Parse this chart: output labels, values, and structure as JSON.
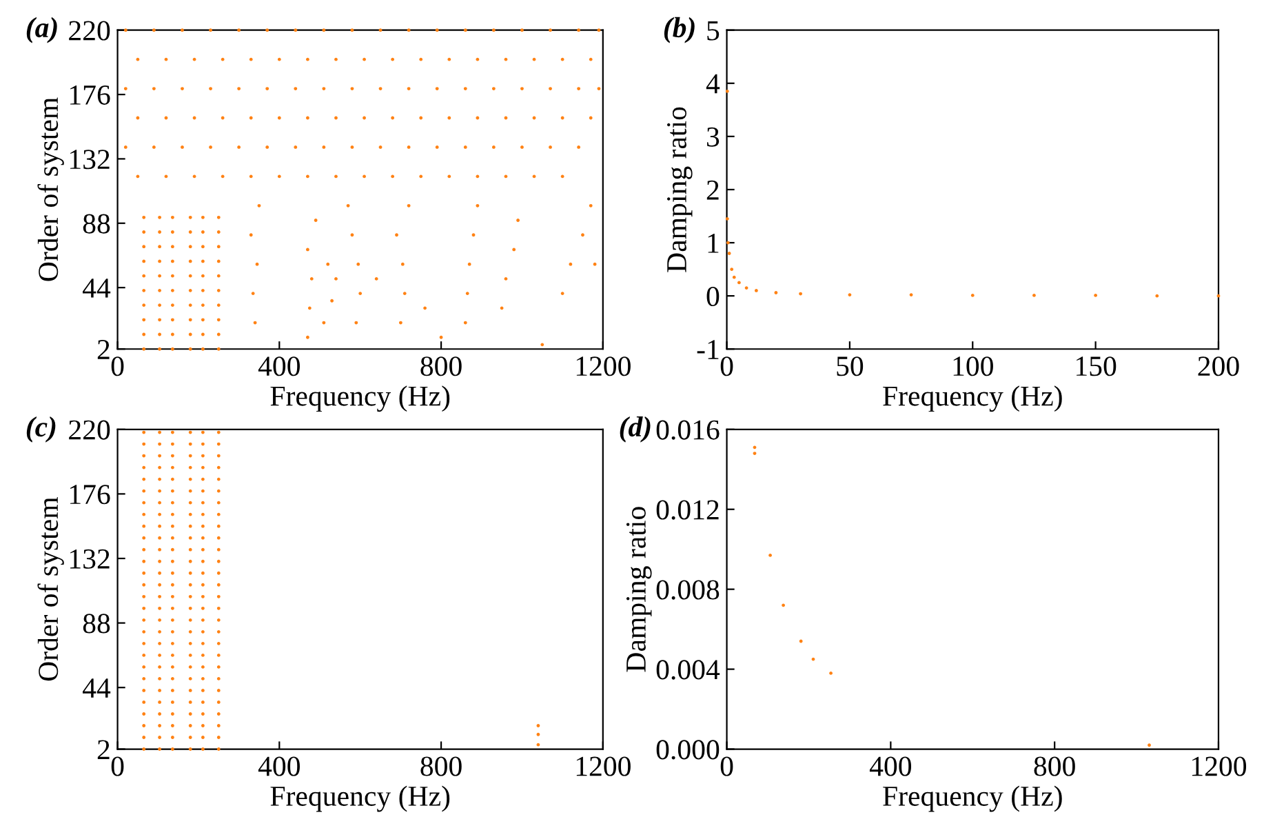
{
  "chart_data": [
    {
      "type": "scatter",
      "annotations": [
        "(a)"
      ],
      "xlabel": "Frequency (Hz)",
      "ylabel": "Order of system",
      "xlim": [
        0,
        1200
      ],
      "xticks": [
        0,
        400,
        800,
        1200
      ],
      "ylim": [
        2,
        220
      ],
      "yticks": [
        2,
        44,
        88,
        132,
        176,
        220
      ],
      "marker": "circle",
      "grid": false,
      "legend": false,
      "series": [
        {
          "color": "#ff8214",
          "x": [
            65,
            65,
            65,
            65,
            65,
            65,
            65,
            65,
            65,
            65,
            104,
            104,
            104,
            104,
            104,
            104,
            104,
            104,
            104,
            104,
            136,
            136,
            136,
            136,
            136,
            136,
            136,
            136,
            136,
            136,
            180,
            180,
            180,
            180,
            180,
            180,
            180,
            180,
            180,
            180,
            211,
            211,
            211,
            211,
            211,
            211,
            211,
            211,
            211,
            211,
            250,
            250,
            250,
            250,
            250,
            250,
            250,
            250,
            250,
            250
          ],
          "values": [
            2,
            12,
            22,
            32,
            42,
            52,
            62,
            72,
            82,
            92,
            2,
            12,
            22,
            32,
            42,
            52,
            62,
            72,
            82,
            92,
            2,
            12,
            22,
            32,
            42,
            52,
            62,
            72,
            82,
            92,
            2,
            12,
            22,
            32,
            42,
            52,
            62,
            72,
            82,
            92,
            2,
            12,
            22,
            32,
            42,
            52,
            62,
            72,
            82,
            92,
            2,
            12,
            22,
            32,
            42,
            52,
            62,
            72,
            82,
            92
          ]
        },
        {
          "color": "#ff8214",
          "x": [
            340,
            335,
            345,
            330,
            350,
            470,
            475,
            480,
            470,
            490,
            510,
            530,
            540,
            520,
            590,
            600,
            595,
            580,
            570,
            700,
            710,
            705,
            690,
            720,
            860,
            865,
            870,
            880,
            890,
            950,
            960,
            980,
            990,
            1100,
            1120,
            1150,
            1180,
            1170,
            800,
            1050,
            640,
            760
          ],
          "values": [
            20,
            40,
            60,
            80,
            100,
            10,
            30,
            50,
            70,
            90,
            20,
            35,
            50,
            60,
            20,
            40,
            60,
            80,
            100,
            20,
            40,
            60,
            80,
            100,
            20,
            40,
            60,
            80,
            100,
            30,
            50,
            70,
            90,
            40,
            60,
            80,
            60,
            100,
            10,
            5,
            50,
            30
          ]
        },
        {
          "color": "#ff8214",
          "x": [
            20,
            90,
            160,
            230,
            300,
            370,
            440,
            510,
            580,
            650,
            720,
            790,
            860,
            930,
            1000,
            1070,
            1140,
            1190,
            50,
            120,
            190,
            260,
            330,
            400,
            470,
            540,
            610,
            680,
            750,
            820,
            890,
            960,
            1030,
            1100,
            1170,
            20,
            90,
            160,
            230,
            300,
            370,
            440,
            510,
            580,
            650,
            720,
            790,
            860,
            930,
            1000,
            1070,
            1140,
            1190,
            50,
            120,
            190,
            260,
            330,
            400,
            470,
            540,
            610,
            680,
            750,
            820,
            890,
            960,
            1030,
            1100,
            1170,
            20,
            90,
            160,
            230,
            300,
            370,
            440,
            510,
            580,
            650,
            720,
            790,
            860,
            930,
            1000,
            1070,
            1140,
            50,
            120,
            190,
            260,
            330,
            400,
            470,
            540,
            610,
            680,
            750,
            820,
            890,
            960,
            1030,
            1100
          ],
          "values": [
            220,
            220,
            220,
            220,
            220,
            220,
            220,
            220,
            220,
            220,
            220,
            220,
            220,
            220,
            220,
            220,
            220,
            220,
            200,
            200,
            200,
            200,
            200,
            200,
            200,
            200,
            200,
            200,
            200,
            200,
            200,
            200,
            200,
            200,
            200,
            180,
            180,
            180,
            180,
            180,
            180,
            180,
            180,
            180,
            180,
            180,
            180,
            180,
            180,
            180,
            180,
            180,
            180,
            160,
            160,
            160,
            160,
            160,
            160,
            160,
            160,
            160,
            160,
            160,
            160,
            160,
            160,
            160,
            160,
            160,
            140,
            140,
            140,
            140,
            140,
            140,
            140,
            140,
            140,
            140,
            140,
            140,
            140,
            140,
            140,
            140,
            140,
            120,
            120,
            120,
            120,
            120,
            120,
            120,
            120,
            120,
            120,
            120,
            120,
            120,
            120,
            120,
            120
          ]
        }
      ]
    },
    {
      "type": "scatter",
      "annotations": [
        "(b)"
      ],
      "xlabel": "Frequency (Hz)",
      "ylabel": "Damping ratio",
      "xlim": [
        0,
        200
      ],
      "xticks": [
        0,
        50,
        100,
        150,
        200
      ],
      "ylim": [
        -1,
        5
      ],
      "yticks": [
        -1,
        0,
        1,
        2,
        3,
        4,
        5
      ],
      "marker": "circle",
      "grid": false,
      "legend": false,
      "series": [
        {
          "color": "#ff8214",
          "x": [
            0.2,
            0.2,
            0.5,
            1,
            2,
            3,
            5,
            8,
            12,
            20,
            30,
            50,
            75,
            100,
            125,
            150,
            175,
            200
          ],
          "values": [
            3.85,
            1.45,
            1.0,
            0.8,
            0.5,
            0.35,
            0.25,
            0.15,
            0.1,
            0.06,
            0.04,
            0.02,
            0.02,
            0.01,
            0.01,
            0.01,
            0.0,
            0.0
          ]
        }
      ]
    },
    {
      "type": "scatter",
      "annotations": [
        "(c)"
      ],
      "xlabel": "Frequency (Hz)",
      "ylabel": "Order of system",
      "xlim": [
        0,
        1200
      ],
      "xticks": [
        0,
        400,
        800,
        1200
      ],
      "ylim": [
        2,
        220
      ],
      "yticks": [
        2,
        44,
        88,
        132,
        176,
        220
      ],
      "marker": "circle",
      "grid": false,
      "legend": false,
      "series": [
        {
          "color": "#ff8214",
          "x": [
            65,
            65,
            65,
            65,
            65,
            65,
            65,
            65,
            65,
            65,
            65,
            65,
            65,
            65,
            65,
            65,
            65,
            65,
            65,
            65,
            65,
            65,
            65,
            65,
            65,
            65,
            65,
            65
          ],
          "values": [
            2,
            10,
            18,
            26,
            34,
            42,
            50,
            58,
            66,
            74,
            82,
            90,
            98,
            106,
            114,
            122,
            130,
            138,
            146,
            154,
            162,
            170,
            178,
            186,
            194,
            202,
            210,
            218
          ]
        },
        {
          "color": "#ff8214",
          "x": [
            104,
            104,
            104,
            104,
            104,
            104,
            104,
            104,
            104,
            104,
            104,
            104,
            104,
            104,
            104,
            104,
            104,
            104,
            104,
            104,
            104,
            104,
            104,
            104,
            104,
            104,
            104,
            104
          ],
          "values": [
            2,
            10,
            18,
            26,
            34,
            42,
            50,
            58,
            66,
            74,
            82,
            90,
            98,
            106,
            114,
            122,
            130,
            138,
            146,
            154,
            162,
            170,
            178,
            186,
            194,
            202,
            210,
            218
          ]
        },
        {
          "color": "#ff8214",
          "x": [
            136,
            136,
            136,
            136,
            136,
            136,
            136,
            136,
            136,
            136,
            136,
            136,
            136,
            136,
            136,
            136,
            136,
            136,
            136,
            136,
            136,
            136,
            136,
            136,
            136,
            136,
            136,
            136
          ],
          "values": [
            2,
            10,
            18,
            26,
            34,
            42,
            50,
            58,
            66,
            74,
            82,
            90,
            98,
            106,
            114,
            122,
            130,
            138,
            146,
            154,
            162,
            170,
            178,
            186,
            194,
            202,
            210,
            218
          ]
        },
        {
          "color": "#ff8214",
          "x": [
            180,
            180,
            180,
            180,
            180,
            180,
            180,
            180,
            180,
            180,
            180,
            180,
            180,
            180,
            180,
            180,
            180,
            180,
            180,
            180,
            180,
            180,
            180,
            180,
            180,
            180,
            180,
            180
          ],
          "values": [
            2,
            10,
            18,
            26,
            34,
            42,
            50,
            58,
            66,
            74,
            82,
            90,
            98,
            106,
            114,
            122,
            130,
            138,
            146,
            154,
            162,
            170,
            178,
            186,
            194,
            202,
            210,
            218
          ]
        },
        {
          "color": "#ff8214",
          "x": [
            211,
            211,
            211,
            211,
            211,
            211,
            211,
            211,
            211,
            211,
            211,
            211,
            211,
            211,
            211,
            211,
            211,
            211,
            211,
            211,
            211,
            211,
            211,
            211,
            211,
            211,
            211,
            211
          ],
          "values": [
            2,
            10,
            18,
            26,
            34,
            42,
            50,
            58,
            66,
            74,
            82,
            90,
            98,
            106,
            114,
            122,
            130,
            138,
            146,
            154,
            162,
            170,
            178,
            186,
            194,
            202,
            210,
            218
          ]
        },
        {
          "color": "#ff8214",
          "x": [
            250,
            250,
            250,
            250,
            250,
            250,
            250,
            250,
            250,
            250,
            250,
            250,
            250,
            250,
            250,
            250,
            250,
            250,
            250,
            250,
            250,
            250,
            250,
            250,
            250,
            250,
            250,
            250
          ],
          "values": [
            2,
            10,
            18,
            26,
            34,
            42,
            50,
            58,
            66,
            74,
            82,
            90,
            98,
            106,
            114,
            122,
            130,
            138,
            146,
            154,
            162,
            170,
            178,
            186,
            194,
            202,
            210,
            218
          ]
        },
        {
          "color": "#ff8214",
          "x": [
            1040,
            1040,
            1040
          ],
          "values": [
            5,
            12,
            18
          ]
        }
      ]
    },
    {
      "type": "scatter",
      "annotations": [
        "(d)"
      ],
      "xlabel": "Frequency (Hz)",
      "ylabel": "Damping ratio",
      "xlim": [
        0,
        1200
      ],
      "xticks": [
        0,
        400,
        800,
        1200
      ],
      "ylim": [
        0,
        0.016
      ],
      "yticks": [
        {
          "value": 0,
          "label": "0.000"
        },
        {
          "value": 0.004,
          "label": "0.004"
        },
        {
          "value": 0.008,
          "label": "0.008"
        },
        {
          "value": 0.012,
          "label": "0.012"
        },
        {
          "value": 0.016,
          "label": "0.016"
        }
      ],
      "marker": "circle",
      "grid": false,
      "legend": false,
      "series": [
        {
          "color": "#ff8214",
          "x": [
            68,
            68,
            106,
            138,
            181,
            211,
            254,
            1031
          ],
          "values": [
            0.0151,
            0.0148,
            0.0097,
            0.0072,
            0.0054,
            0.0045,
            0.0038,
            0.0002
          ]
        }
      ]
    }
  ]
}
